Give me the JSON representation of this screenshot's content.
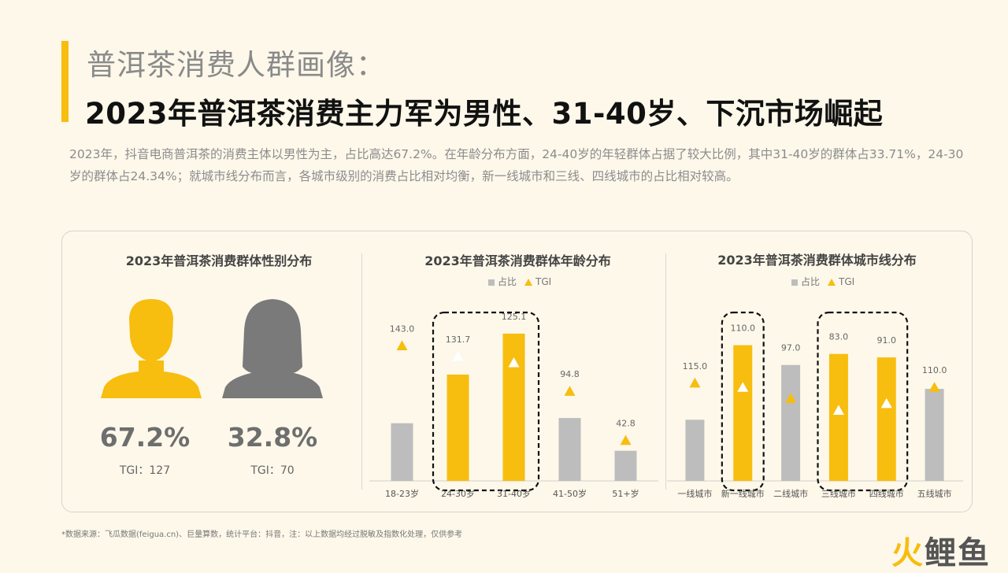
{
  "header": {
    "subtitle": "普洱茶消费人群画像：",
    "title": "2023年普洱茶消费主力军为男性、31-40岁、下沉市场崛起",
    "description": "2023年，抖音电商普洱茶的消费主体以男性为主，占比高达67.2%。在年龄分布方面，24-40岁的年轻群体占据了较大比例，其中31-40岁的群体占33.71%，24-30岁的群体占24.34%；就城市线分布而言，各城市级别的消费占比相对均衡，新一线城市和三线、四线城市的占比相对较高。"
  },
  "gender": {
    "title": "2023年普洱茶消费群体性别分布",
    "male_pct": "67.2%",
    "male_tgi": "TGI：127",
    "female_pct": "32.8%",
    "female_tgi": "TGI：70"
  },
  "legend": {
    "share": "占比",
    "tgi": "TGI"
  },
  "colors": {
    "accent": "#f7bd0f",
    "gray": "#bdbdbd",
    "female": "#7a7a7a",
    "background": "#fdf8ea"
  },
  "chart_data": [
    {
      "type": "bar",
      "title": "2023年普洱茶消费群体年龄分布",
      "categories": [
        "18-23岁",
        "24-30岁",
        "31-40岁",
        "41-50岁",
        "51+岁"
      ],
      "series": [
        {
          "name": "占比",
          "values": [
            13.2,
            24.34,
            33.71,
            14.4,
            6.9
          ]
        },
        {
          "name": "TGI",
          "values": [
            143.0,
            131.7,
            125.1,
            94.8,
            42.8
          ]
        }
      ],
      "highlighted": [
        "24-30岁",
        "31-40岁"
      ],
      "legend_position": "top"
    },
    {
      "type": "bar",
      "title": "2023年普洱茶消费群体城市线分布",
      "categories": [
        "一线城市",
        "新一线城市",
        "二线城市",
        "三线城市",
        "四线城市",
        "五线城市"
      ],
      "series": [
        {
          "name": "占比",
          "values": [
            10.5,
            23.3,
            19.9,
            21.8,
            21.2,
            15.8
          ]
        },
        {
          "name": "TGI",
          "values": [
            115.0,
            110.0,
            97.0,
            83.0,
            91.0,
            110.0
          ]
        }
      ],
      "highlighted": [
        "新一线城市",
        "三线城市",
        "四线城市"
      ],
      "legend_position": "top"
    }
  ],
  "footnote": "*数据来源：飞瓜数据(feigua.cn)、巨量算数，统计平台：抖音，注：以上数据均经过脱敏及指数化处理，仅供参考",
  "logo": {
    "part1": "火",
    "part2": "鲤鱼"
  }
}
